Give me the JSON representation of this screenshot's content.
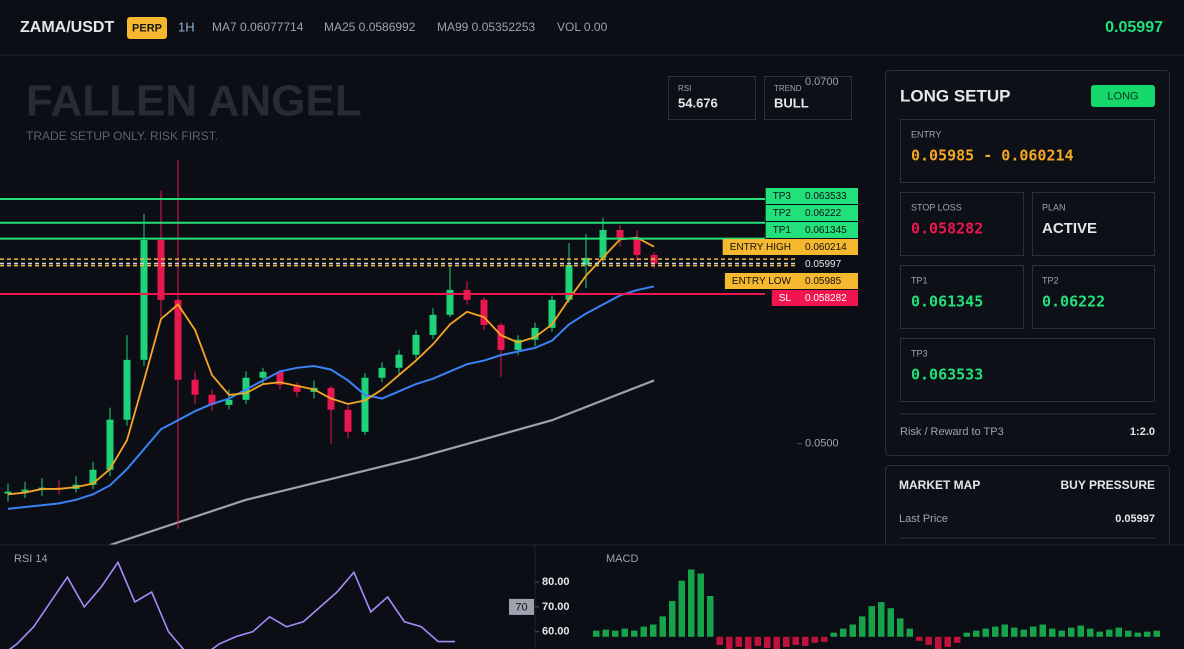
{
  "header": {
    "symbol": "ZAMA/USDT",
    "badge": "PERP",
    "interval": "1H",
    "ma7": "MA7 0.06077714",
    "ma25": "MA25 0.0586992",
    "ma99": "MA99 0.05352253",
    "volume": "VOL 0.00",
    "price": "0.05997"
  },
  "watermark": {
    "title": "FALLEN ANGEL",
    "subtitle": "TRADE SETUP ONLY. RISK FIRST."
  },
  "indicators": {
    "rsi_label": "RSI",
    "rsi_value": "54.676",
    "trend_label": "TREND",
    "trend_value": "BULL"
  },
  "chart_data": [
    {
      "type": "candlestick",
      "open": [
        0.04724,
        0.04735,
        0.04746,
        0.04757,
        0.0475,
        0.04773,
        0.04856,
        0.05133,
        0.05464,
        0.06127,
        0.05796,
        0.05354,
        0.05271,
        0.05215,
        0.05243,
        0.05365,
        0.05398,
        0.05326,
        0.05287,
        0.05309,
        0.05188,
        0.05066,
        0.05365,
        0.0542,
        0.05492,
        0.05602,
        0.05713,
        0.05851,
        0.05796,
        0.05657,
        0.05519,
        0.05575,
        0.05641,
        0.05796,
        0.05989,
        0.06028,
        0.06182,
        0.06138,
        0.06044
      ],
      "high": [
        0.0478,
        0.0479,
        0.0481,
        0.048,
        0.0482,
        0.049,
        0.052,
        0.056,
        0.0627,
        0.064,
        0.0657,
        0.054,
        0.053,
        0.053,
        0.054,
        0.0542,
        0.0541,
        0.0534,
        0.0535,
        0.0532,
        0.0521,
        0.0539,
        0.0545,
        0.0552,
        0.0563,
        0.0575,
        0.0598,
        0.059,
        0.0581,
        0.0567,
        0.056,
        0.0567,
        0.0582,
        0.0611,
        0.0616,
        0.0625,
        0.0621,
        0.0618,
        0.0606
      ],
      "low": [
        0.0468,
        0.047,
        0.0471,
        0.0472,
        0.0473,
        0.0475,
        0.0482,
        0.051,
        0.0543,
        0.057,
        0.0453,
        0.0522,
        0.0518,
        0.0519,
        0.0522,
        0.0533,
        0.053,
        0.0526,
        0.0525,
        0.05,
        0.0503,
        0.0505,
        0.0534,
        0.0538,
        0.0547,
        0.0558,
        0.057,
        0.0577,
        0.0563,
        0.0537,
        0.0549,
        0.0554,
        0.0562,
        0.0578,
        0.0586,
        0.06,
        0.0609,
        0.0601,
        0.0597
      ],
      "close": [
        0.04735,
        0.04746,
        0.04757,
        0.0475,
        0.04773,
        0.04856,
        0.05133,
        0.05464,
        0.06127,
        0.05796,
        0.05354,
        0.05271,
        0.05215,
        0.05243,
        0.05365,
        0.05398,
        0.05326,
        0.05287,
        0.05309,
        0.05188,
        0.05066,
        0.05365,
        0.0542,
        0.05492,
        0.05602,
        0.05713,
        0.05851,
        0.05796,
        0.05657,
        0.05519,
        0.05575,
        0.05641,
        0.05796,
        0.05989,
        0.06028,
        0.06182,
        0.06138,
        0.06044,
        0.05997
      ],
      "ma_fast": [
        0.0472,
        0.0473,
        0.0475,
        0.0475,
        0.0476,
        0.0478,
        0.0486,
        0.0502,
        0.0535,
        0.0569,
        0.0577,
        0.0563,
        0.0538,
        0.0527,
        0.0528,
        0.0533,
        0.0534,
        0.0532,
        0.053,
        0.0525,
        0.0522,
        0.0524,
        0.053,
        0.0538,
        0.0546,
        0.0555,
        0.0566,
        0.0573,
        0.057,
        0.056,
        0.0556,
        0.0559,
        0.0566,
        0.058,
        0.0593,
        0.0603,
        0.0613,
        0.0614,
        0.0609
      ],
      "ma_mid": [
        0.0464,
        0.0465,
        0.0466,
        0.0467,
        0.0469,
        0.0472,
        0.0477,
        0.0486,
        0.0497,
        0.0508,
        0.0513,
        0.0518,
        0.0522,
        0.0525,
        0.053,
        0.0535,
        0.054,
        0.0542,
        0.0543,
        0.0541,
        0.0535,
        0.0527,
        0.0525,
        0.0529,
        0.0533,
        0.0536,
        0.054,
        0.0544,
        0.0546,
        0.0549,
        0.0551,
        0.0553,
        0.0557,
        0.0566,
        0.0572,
        0.0577,
        0.0582,
        0.0585,
        0.0587
      ],
      "ma_slow": {
        "x": [
          6,
          14,
          24,
          32,
          38
        ],
        "values": [
          0.0444,
          0.0469,
          0.0492,
          0.0513,
          0.0535
        ]
      },
      "colors": {
        "up": "#1fd37a",
        "down": "#e8174f",
        "ma_fast": "#f5a623",
        "ma_mid": "#3b82f6",
        "ma_slow": "#9ca3af"
      },
      "ylim": [
        0.0444,
        0.0715
      ],
      "yticks": [
        {
          "value": 0.07,
          "label": "0.0700"
        },
        {
          "value": 0.05,
          "label": "0.0500"
        }
      ],
      "levels": [
        {
          "name": "TP3",
          "value": 0.063533,
          "color": "#22e07a",
          "style": "solid"
        },
        {
          "name": "TP2",
          "value": 0.06222,
          "color": "#22e07a",
          "style": "solid"
        },
        {
          "name": "TP1",
          "value": 0.061345,
          "color": "#22e07a",
          "style": "solid"
        },
        {
          "name": "ENTRY HIGH",
          "value": 0.060214,
          "color": "#f5b82e",
          "style": "dashed"
        },
        {
          "value": 0.05997,
          "color": "#d1d5db",
          "style": "dashed"
        },
        {
          "name": "ENTRY LOW",
          "value": 0.05985,
          "color": "#f5b82e",
          "style": "dashed"
        },
        {
          "name": "SL",
          "value": 0.058282,
          "color": "#f0154f",
          "style": "solid"
        }
      ]
    },
    {
      "type": "line",
      "title": "RSI 14",
      "color": "#a78bfa",
      "values": [
        50,
        55,
        62,
        72,
        82,
        70,
        78,
        88,
        72,
        76,
        60,
        52,
        50,
        55,
        58,
        60,
        66,
        62,
        64,
        70,
        76,
        84,
        68,
        74,
        64,
        62,
        56,
        56
      ],
      "ylim": [
        53,
        95
      ],
      "yticks": [
        {
          "value": 80,
          "label": "80.00"
        },
        {
          "value": 70,
          "label": "70.00"
        },
        {
          "value": 60,
          "label": "60.00"
        }
      ],
      "marker": "70"
    },
    {
      "type": "bar",
      "title": "MACD",
      "colors": {
        "up": "#16a34a",
        "down": "#be123c"
      },
      "values": [
        6e-05,
        7e-05,
        6e-05,
        8e-05,
        6e-05,
        0.0001,
        0.00012,
        0.0002,
        0.00035,
        0.00055,
        0.00066,
        0.00062,
        0.0004,
        -8e-05,
        -0.00012,
        -0.0001,
        -0.00012,
        -9e-05,
        -0.00011,
        -0.00012,
        -0.0001,
        -8e-05,
        -9e-05,
        -6e-05,
        -5e-05,
        4e-05,
        8e-05,
        0.00012,
        0.0002,
        0.0003,
        0.00034,
        0.00028,
        0.00018,
        8e-05,
        -4e-05,
        -8e-05,
        -0.00012,
        -0.0001,
        -6e-05,
        4e-05,
        6e-05,
        8e-05,
        0.0001,
        0.00012,
        9e-05,
        7e-05,
        0.0001,
        0.00012,
        8e-05,
        6e-05,
        9e-05,
        0.00011,
        8e-05,
        5e-05,
        7e-05,
        9e-05,
        6e-05,
        4e-05,
        5e-05,
        6e-05
      ],
      "ylim": [
        -0.00012,
        0.0009
      ]
    }
  ],
  "panel": {
    "title": "LONG SETUP",
    "direction": "LONG",
    "entry_label": "ENTRY",
    "entry": "0.05985 - 0.060214",
    "stop_label": "STOP LOSS",
    "stop": "0.058282",
    "plan_label": "PLAN",
    "plan": "ACTIVE",
    "tp1_label": "TP1",
    "tp1": "0.061345",
    "tp2_label": "TP2",
    "tp2": "0.06222",
    "tp3_label": "TP3",
    "tp3": "0.063533",
    "rr_label": "Risk / Reward to TP3",
    "rr": "1:2.0"
  },
  "market": {
    "title": "MARKET MAP",
    "pressure": "BUY PRESSURE",
    "last_label": "Last Price",
    "last": "0.05997"
  }
}
